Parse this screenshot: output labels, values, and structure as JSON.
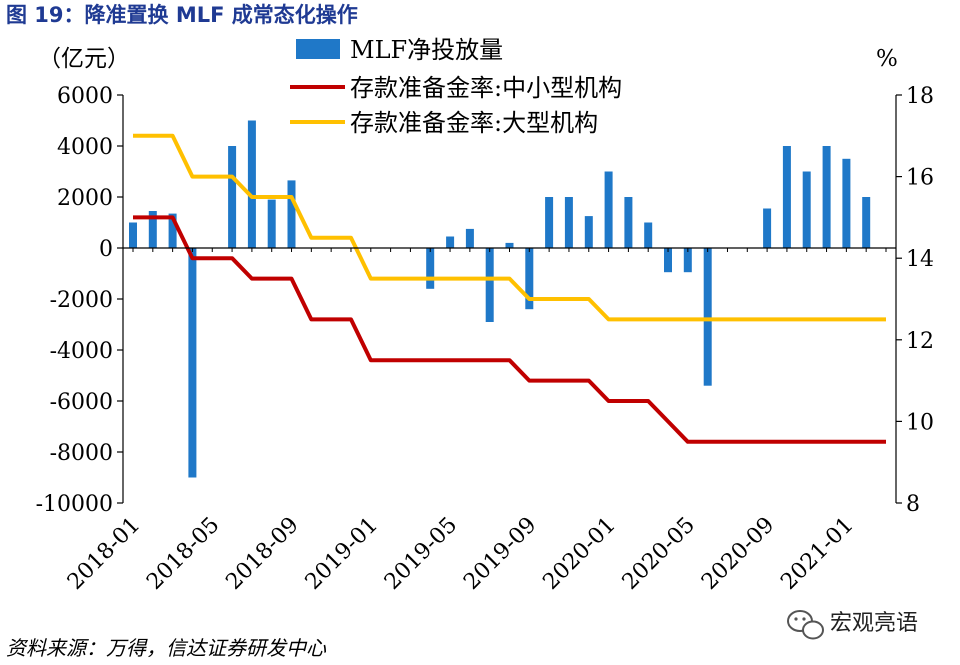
{
  "figure": {
    "title": "图 19：降准置换 MLF 成常态化操作",
    "source": "资料来源：万得，信达证券研发中心",
    "watermark": "宏观亮语"
  },
  "chart_data": {
    "type": "bar+line",
    "left_unit": "（亿元）",
    "right_unit": "%",
    "left_ylim": [
      -10000,
      6000
    ],
    "left_ticks": [
      6000,
      4000,
      2000,
      0,
      -2000,
      -4000,
      -6000,
      -8000,
      -10000
    ],
    "right_ylim": [
      8,
      18
    ],
    "right_ticks": [
      18,
      16,
      14,
      12,
      10,
      8
    ],
    "x_tick_labels": [
      "2018-01",
      "2018-05",
      "2018-09",
      "2019-01",
      "2019-05",
      "2019-09",
      "2020-01",
      "2020-05",
      "2020-09",
      "2021-01"
    ],
    "months": [
      "2018-01",
      "2018-02",
      "2018-03",
      "2018-04",
      "2018-05",
      "2018-06",
      "2018-07",
      "2018-08",
      "2018-09",
      "2018-10",
      "2018-11",
      "2018-12",
      "2019-01",
      "2019-02",
      "2019-03",
      "2019-04",
      "2019-05",
      "2019-06",
      "2019-07",
      "2019-08",
      "2019-09",
      "2019-10",
      "2019-11",
      "2019-12",
      "2020-01",
      "2020-02",
      "2020-03",
      "2020-04",
      "2020-05",
      "2020-06",
      "2020-07",
      "2020-08",
      "2020-09",
      "2020-10",
      "2020-11",
      "2020-12",
      "2021-01",
      "2021-02",
      "2021-03"
    ],
    "legend": [
      "MLF净投放量",
      "存款准备金率:中小型机构",
      "存款准备金率:大型机构"
    ],
    "series": [
      {
        "name": "MLF净投放量",
        "kind": "bar",
        "axis": "left",
        "color": "#1f78c8",
        "values": [
          1000,
          1450,
          1350,
          -9000,
          0,
          4000,
          5000,
          1900,
          2650,
          0,
          0,
          0,
          0,
          0,
          0,
          -1600,
          450,
          750,
          -2900,
          200,
          -2400,
          2000,
          2000,
          1250,
          3000,
          2000,
          1000,
          -950,
          -950,
          -5400,
          0,
          0,
          1550,
          4000,
          3000,
          4000,
          3500,
          2000,
          0
        ]
      },
      {
        "name": "存款准备金率:中小型机构",
        "kind": "line",
        "axis": "right",
        "color": "#c00000",
        "values": [
          15,
          15,
          15,
          14,
          14,
          14,
          13.5,
          13.5,
          13.5,
          12.5,
          12.5,
          12.5,
          11.5,
          11.5,
          11.5,
          11.5,
          11.5,
          11.5,
          11.5,
          11.5,
          11,
          11,
          11,
          11,
          10.5,
          10.5,
          10.5,
          10,
          9.5,
          9.5,
          9.5,
          9.5,
          9.5,
          9.5,
          9.5,
          9.5,
          9.5,
          9.5,
          9.5
        ]
      },
      {
        "name": "存款准备金率:大型机构",
        "kind": "line",
        "axis": "right",
        "color": "#ffc000",
        "values": [
          17,
          17,
          17,
          16,
          16,
          16,
          15.5,
          15.5,
          15.5,
          14.5,
          14.5,
          14.5,
          13.5,
          13.5,
          13.5,
          13.5,
          13.5,
          13.5,
          13.5,
          13.5,
          13,
          13,
          13,
          13,
          12.5,
          12.5,
          12.5,
          12.5,
          12.5,
          12.5,
          12.5,
          12.5,
          12.5,
          12.5,
          12.5,
          12.5,
          12.5,
          12.5,
          12.5
        ]
      }
    ]
  }
}
